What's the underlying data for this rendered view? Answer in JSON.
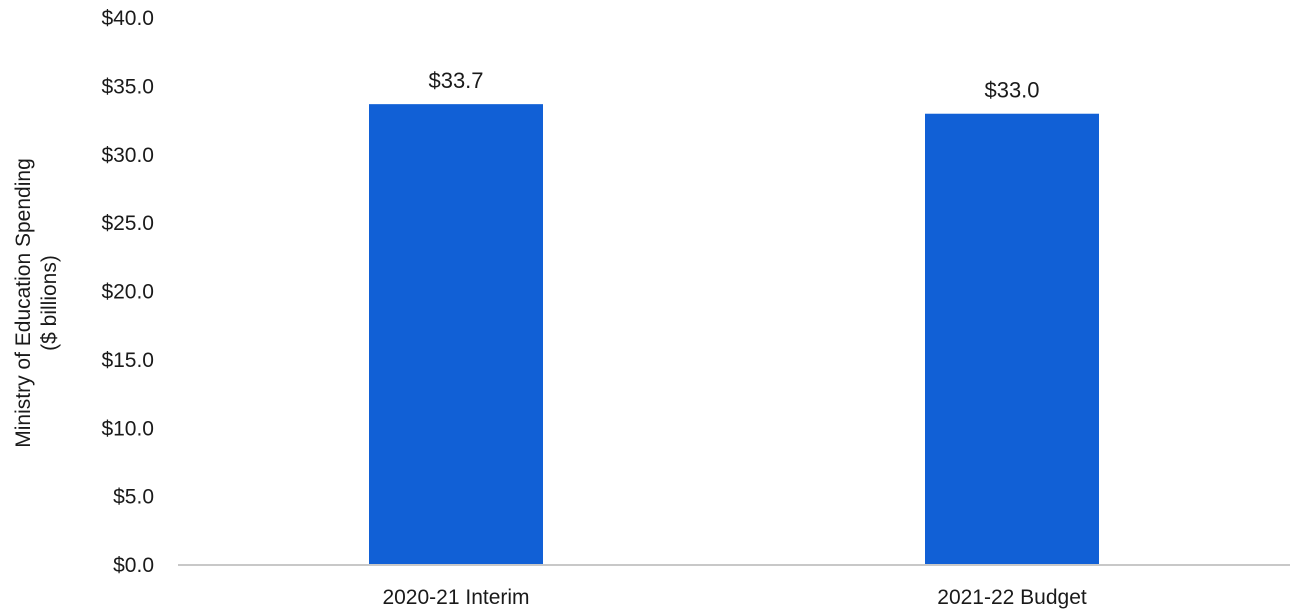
{
  "chart_data": {
    "type": "bar",
    "title": "",
    "xlabel": "",
    "ylabel_lines": [
      "Ministry of Education Spending",
      "($ billions)"
    ],
    "categories": [
      "2020-21 Interim",
      "2021-22 Budget"
    ],
    "values": [
      33.7,
      33.0
    ],
    "data_labels": [
      "$33.7",
      "$33.0"
    ],
    "ylim": [
      0,
      40
    ],
    "y_ticks": [
      0,
      5,
      10,
      15,
      20,
      25,
      30,
      35,
      40
    ],
    "y_tick_labels": [
      "$0.0",
      "$5.0",
      "$10.0",
      "$15.0",
      "$20.0",
      "$25.0",
      "$30.0",
      "$35.0",
      "$40.0"
    ],
    "grid": false,
    "legend": "none",
    "bar_color": "#1160D6",
    "axis_color": "#C8C8C8"
  }
}
